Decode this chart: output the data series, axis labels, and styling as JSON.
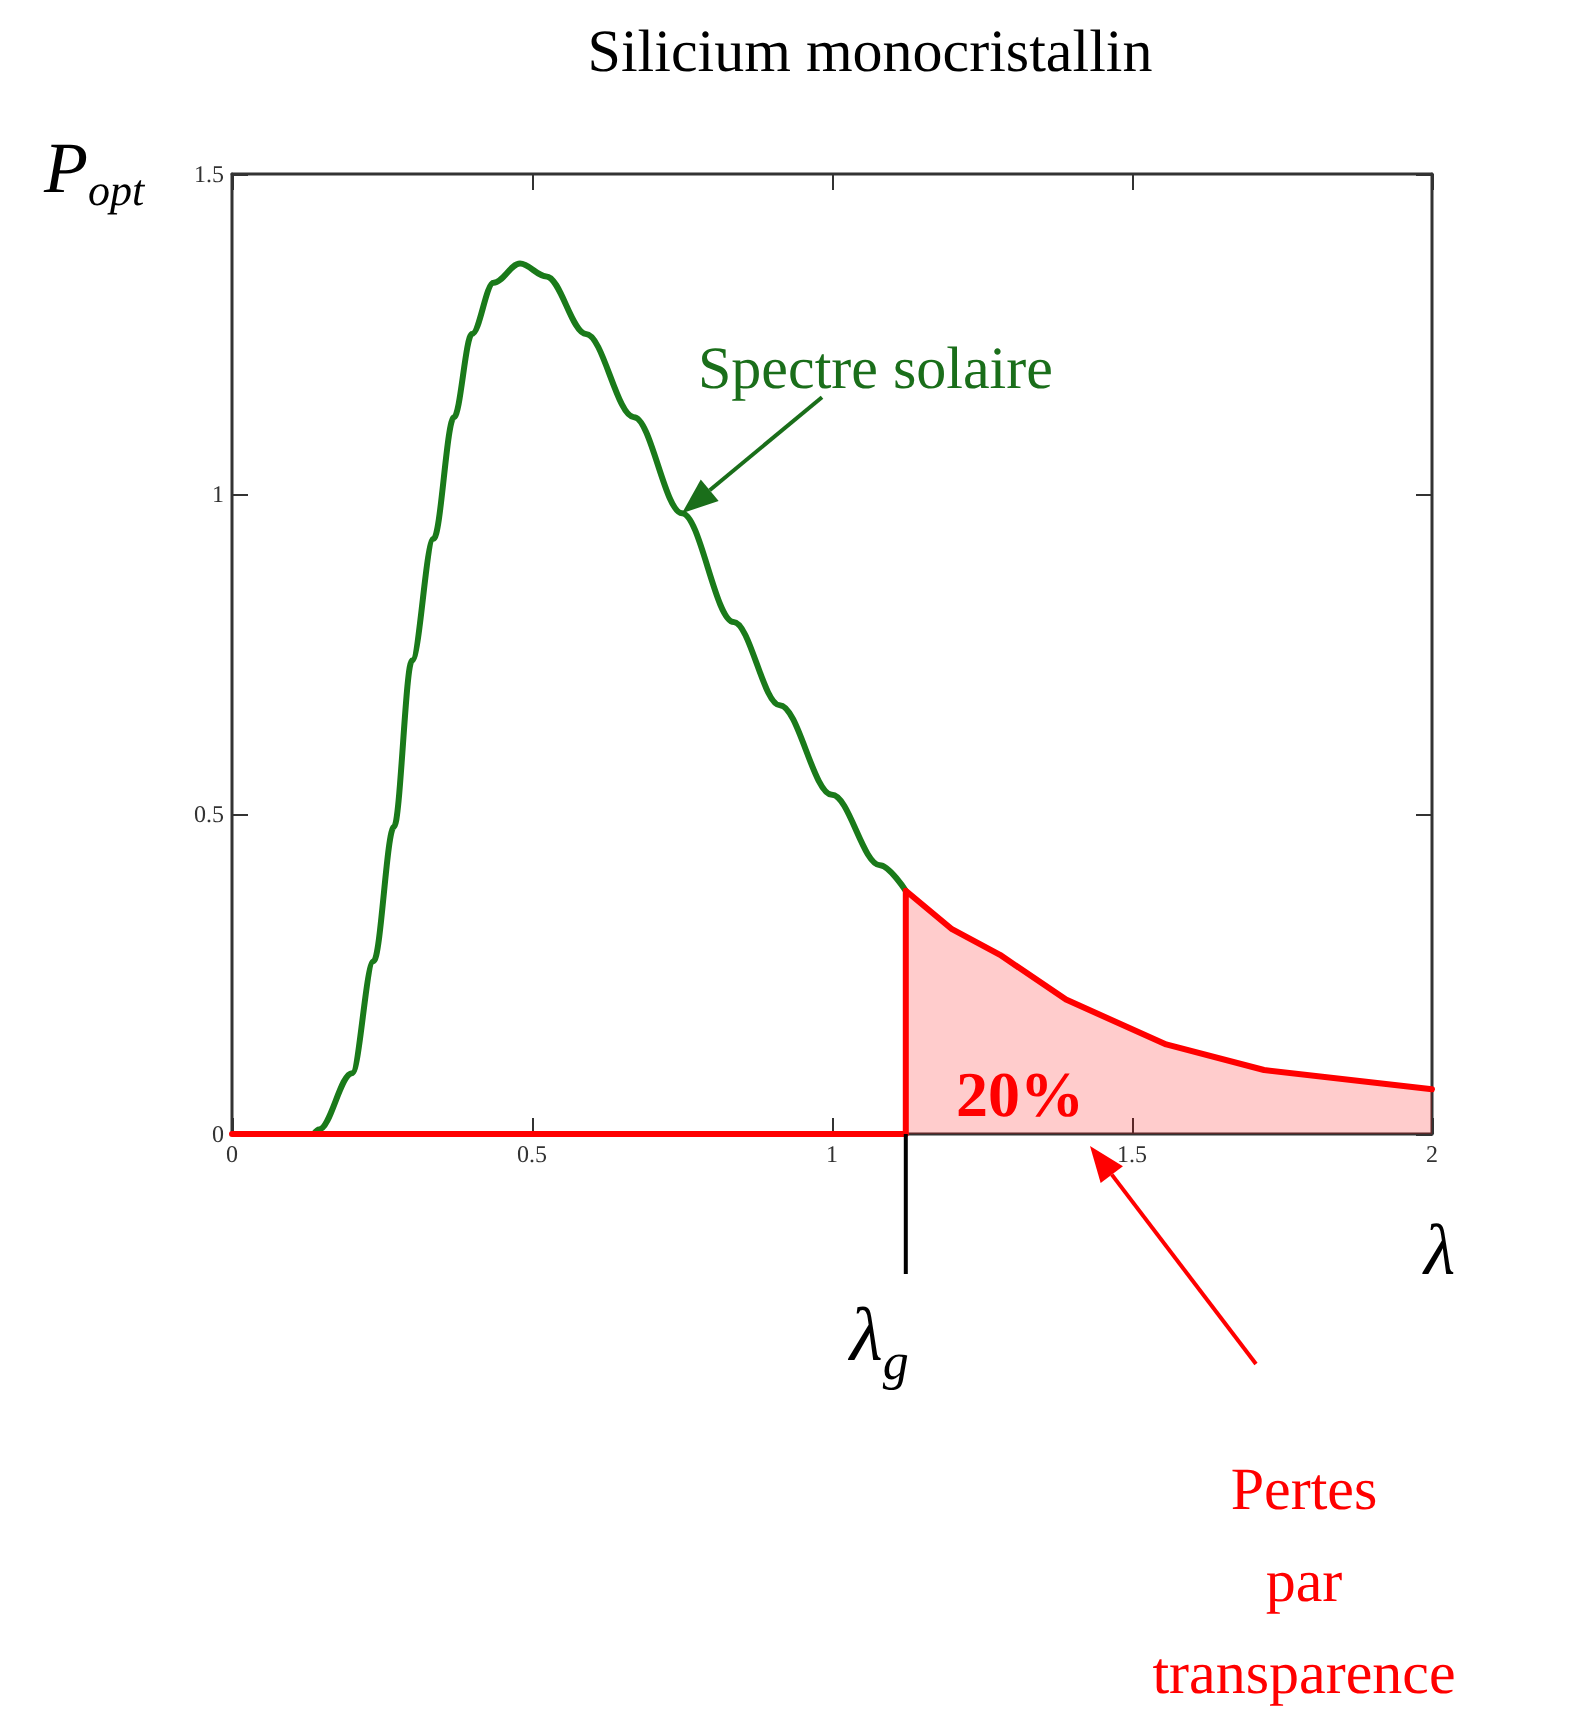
{
  "chart_data": {
    "type": "line",
    "title": "Silicium monocristallin",
    "xlabel": "λ",
    "ylabel": "P$_{opt}$",
    "series": [
      {
        "color": "#1a7a1a",
        "x": [
          0.136,
          0.145,
          0.2,
          0.236,
          0.27,
          0.3,
          0.336,
          0.37,
          0.4,
          0.436,
          0.48,
          0.524,
          0.59,
          0.67,
          0.75,
          0.836,
          0.913,
          1.0,
          1.08,
          1.123
        ],
        "values": [
          0,
          0.007,
          0.095,
          0.27,
          0.48,
          0.74,
          0.93,
          1.12,
          1.25,
          1.33,
          1.36,
          1.34,
          1.25,
          1.12,
          0.97,
          0.8,
          0.67,
          0.53,
          0.42,
          0.38
        ]
      },
      {
        "type": "area",
        "color": "#ff0000",
        "x": [
          0,
          1.123,
          1.123,
          1.2,
          1.28,
          1.39,
          1.557,
          1.72,
          2.0
        ],
        "values": [
          0,
          0,
          0.38,
          0.32,
          0.28,
          0.21,
          0.14,
          0.1,
          0.07
        ]
      }
    ],
    "xlim": [
      0,
      2
    ],
    "xticks": [
      0,
      0.5,
      1,
      1.5,
      2
    ],
    "ylim": [
      0,
      1.5
    ],
    "yticks": [
      0,
      0.5,
      1,
      1.5
    ],
    "grid": false,
    "marker": "none",
    "line_style": "solid",
    "annotations": [
      {
        "text": "Spectre solaire",
        "x": 0.75,
        "y": 0.97
      },
      "20%",
      "Pertes\npar\ntransparence",
      {
        "text": "λ$_{g}$",
        "x": 1.123,
        "y": 0
      }
    ]
  }
}
